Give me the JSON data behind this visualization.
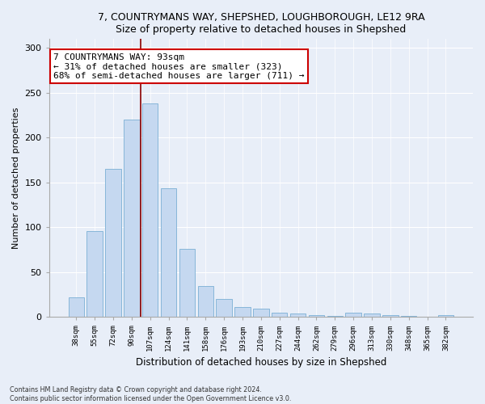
{
  "title1": "7, COUNTRYMANS WAY, SHEPSHED, LOUGHBOROUGH, LE12 9RA",
  "title2": "Size of property relative to detached houses in Shepshed",
  "xlabel": "Distribution of detached houses by size in Shepshed",
  "ylabel": "Number of detached properties",
  "bar_color": "#c5d8f0",
  "bar_edge_color": "#7bafd4",
  "vline_color": "#8b0000",
  "annotation_text": "7 COUNTRYMANS WAY: 93sqm\n← 31% of detached houses are smaller (323)\n68% of semi-detached houses are larger (711) →",
  "annotation_box_color": "#ffffff",
  "annotation_box_edge": "#cc0000",
  "categories": [
    "38sqm",
    "55sqm",
    "72sqm",
    "90sqm",
    "107sqm",
    "124sqm",
    "141sqm",
    "158sqm",
    "176sqm",
    "193sqm",
    "210sqm",
    "227sqm",
    "244sqm",
    "262sqm",
    "279sqm",
    "296sqm",
    "313sqm",
    "330sqm",
    "348sqm",
    "365sqm",
    "382sqm"
  ],
  "values": [
    22,
    96,
    165,
    220,
    238,
    144,
    76,
    35,
    20,
    11,
    9,
    5,
    4,
    2,
    1,
    5,
    4,
    2,
    1,
    0,
    2
  ],
  "ylim": [
    0,
    310
  ],
  "yticks": [
    0,
    50,
    100,
    150,
    200,
    250,
    300
  ],
  "footer1": "Contains HM Land Registry data © Crown copyright and database right 2024.",
  "footer2": "Contains public sector information licensed under the Open Government Licence v3.0.",
  "bg_color": "#e8eef8",
  "plot_bg_color": "#e8eef8",
  "vline_index": 3.5
}
